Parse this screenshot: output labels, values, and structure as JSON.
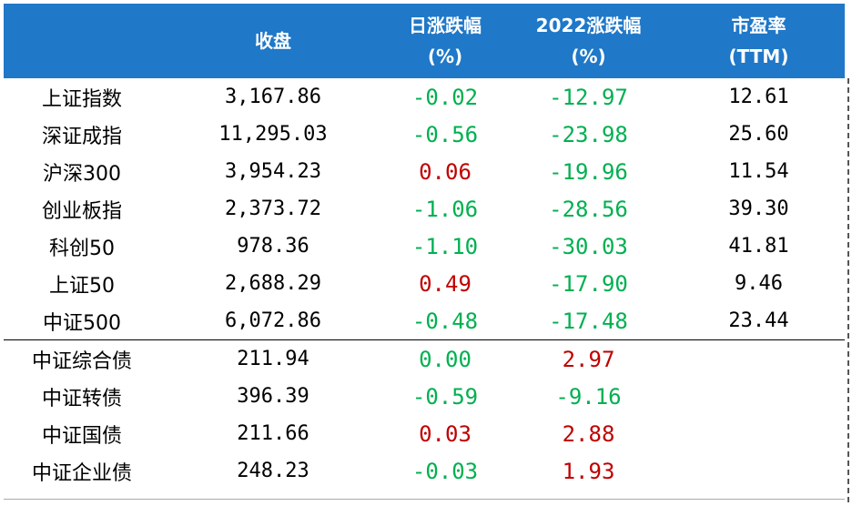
{
  "header": {
    "col_name": "",
    "col_close": "收盘",
    "col_daily_line1": "日涨跌幅",
    "col_daily_line2": "(%)",
    "col_ytd_line1": "2022涨跌幅",
    "col_ytd_line2": "(%)",
    "col_pe_line1": "市盈率",
    "col_pe_line2": "(TTM)"
  },
  "colors": {
    "header_bg": "#1f78c8",
    "up": "#c00000",
    "down": "#00b050"
  },
  "rows": [
    {
      "name": "上证指数",
      "close": "3,167.86",
      "daily": "-0.02",
      "daily_dir": "down",
      "ytd": "-12.97",
      "ytd_dir": "down",
      "pe": "12.61"
    },
    {
      "name": "深证成指",
      "close": "11,295.03",
      "daily": "-0.56",
      "daily_dir": "down",
      "ytd": "-23.98",
      "ytd_dir": "down",
      "pe": "25.60"
    },
    {
      "name": "沪深300",
      "close": "3,954.23",
      "daily": "0.06",
      "daily_dir": "up",
      "ytd": "-19.96",
      "ytd_dir": "down",
      "pe": "11.54"
    },
    {
      "name": "创业板指",
      "close": "2,373.72",
      "daily": "-1.06",
      "daily_dir": "down",
      "ytd": "-28.56",
      "ytd_dir": "down",
      "pe": "39.30"
    },
    {
      "name": "科创50",
      "close": "978.36",
      "daily": "-1.10",
      "daily_dir": "down",
      "ytd": "-30.03",
      "ytd_dir": "down",
      "pe": "41.81"
    },
    {
      "name": "上证50",
      "close": "2,688.29",
      "daily": "0.49",
      "daily_dir": "up",
      "ytd": "-17.90",
      "ytd_dir": "down",
      "pe": "9.46"
    },
    {
      "name": "中证500",
      "close": "6,072.86",
      "daily": "-0.48",
      "daily_dir": "down",
      "ytd": "-17.48",
      "ytd_dir": "down",
      "pe": "23.44"
    },
    {
      "name": "中证综合债",
      "close": "211.94",
      "daily": "0.00",
      "daily_dir": "down",
      "ytd": "2.97",
      "ytd_dir": "up",
      "pe": ""
    },
    {
      "name": "中证转债",
      "close": "396.39",
      "daily": "-0.59",
      "daily_dir": "down",
      "ytd": "-9.16",
      "ytd_dir": "down",
      "pe": ""
    },
    {
      "name": "中证国债",
      "close": "211.66",
      "daily": "0.03",
      "daily_dir": "up",
      "ytd": "2.88",
      "ytd_dir": "up",
      "pe": ""
    },
    {
      "name": "中证企业债",
      "close": "248.23",
      "daily": "-0.03",
      "daily_dir": "down",
      "ytd": "1.93",
      "ytd_dir": "up",
      "pe": ""
    }
  ]
}
